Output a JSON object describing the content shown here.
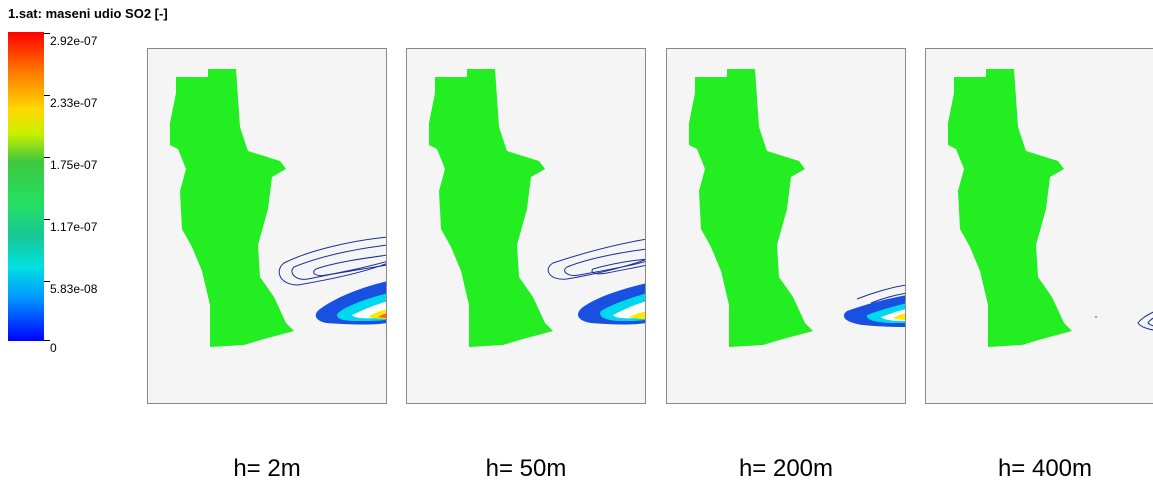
{
  "title": "1.sat: maseni udio SO2 [-]",
  "colorbar": {
    "labels": [
      "2.92e-07",
      "2.33e-07",
      "1.75e-07",
      "1.17e-07",
      "5.83e-08",
      "0"
    ],
    "colors": [
      "#ff0000",
      "#ff7a00",
      "#ffd800",
      "#3ec840",
      "#25e060",
      "#18c896",
      "#00e0e0",
      "#0098ff",
      "#0000ff"
    ]
  },
  "panels": [
    {
      "caption": "h= 2m"
    },
    {
      "caption": "h= 50m"
    },
    {
      "caption": "h= 200m"
    },
    {
      "caption": "h= 400m"
    }
  ],
  "colors": {
    "land": "#22ee22",
    "background": "#f5f5f5",
    "contour": "#1a2e9a"
  }
}
